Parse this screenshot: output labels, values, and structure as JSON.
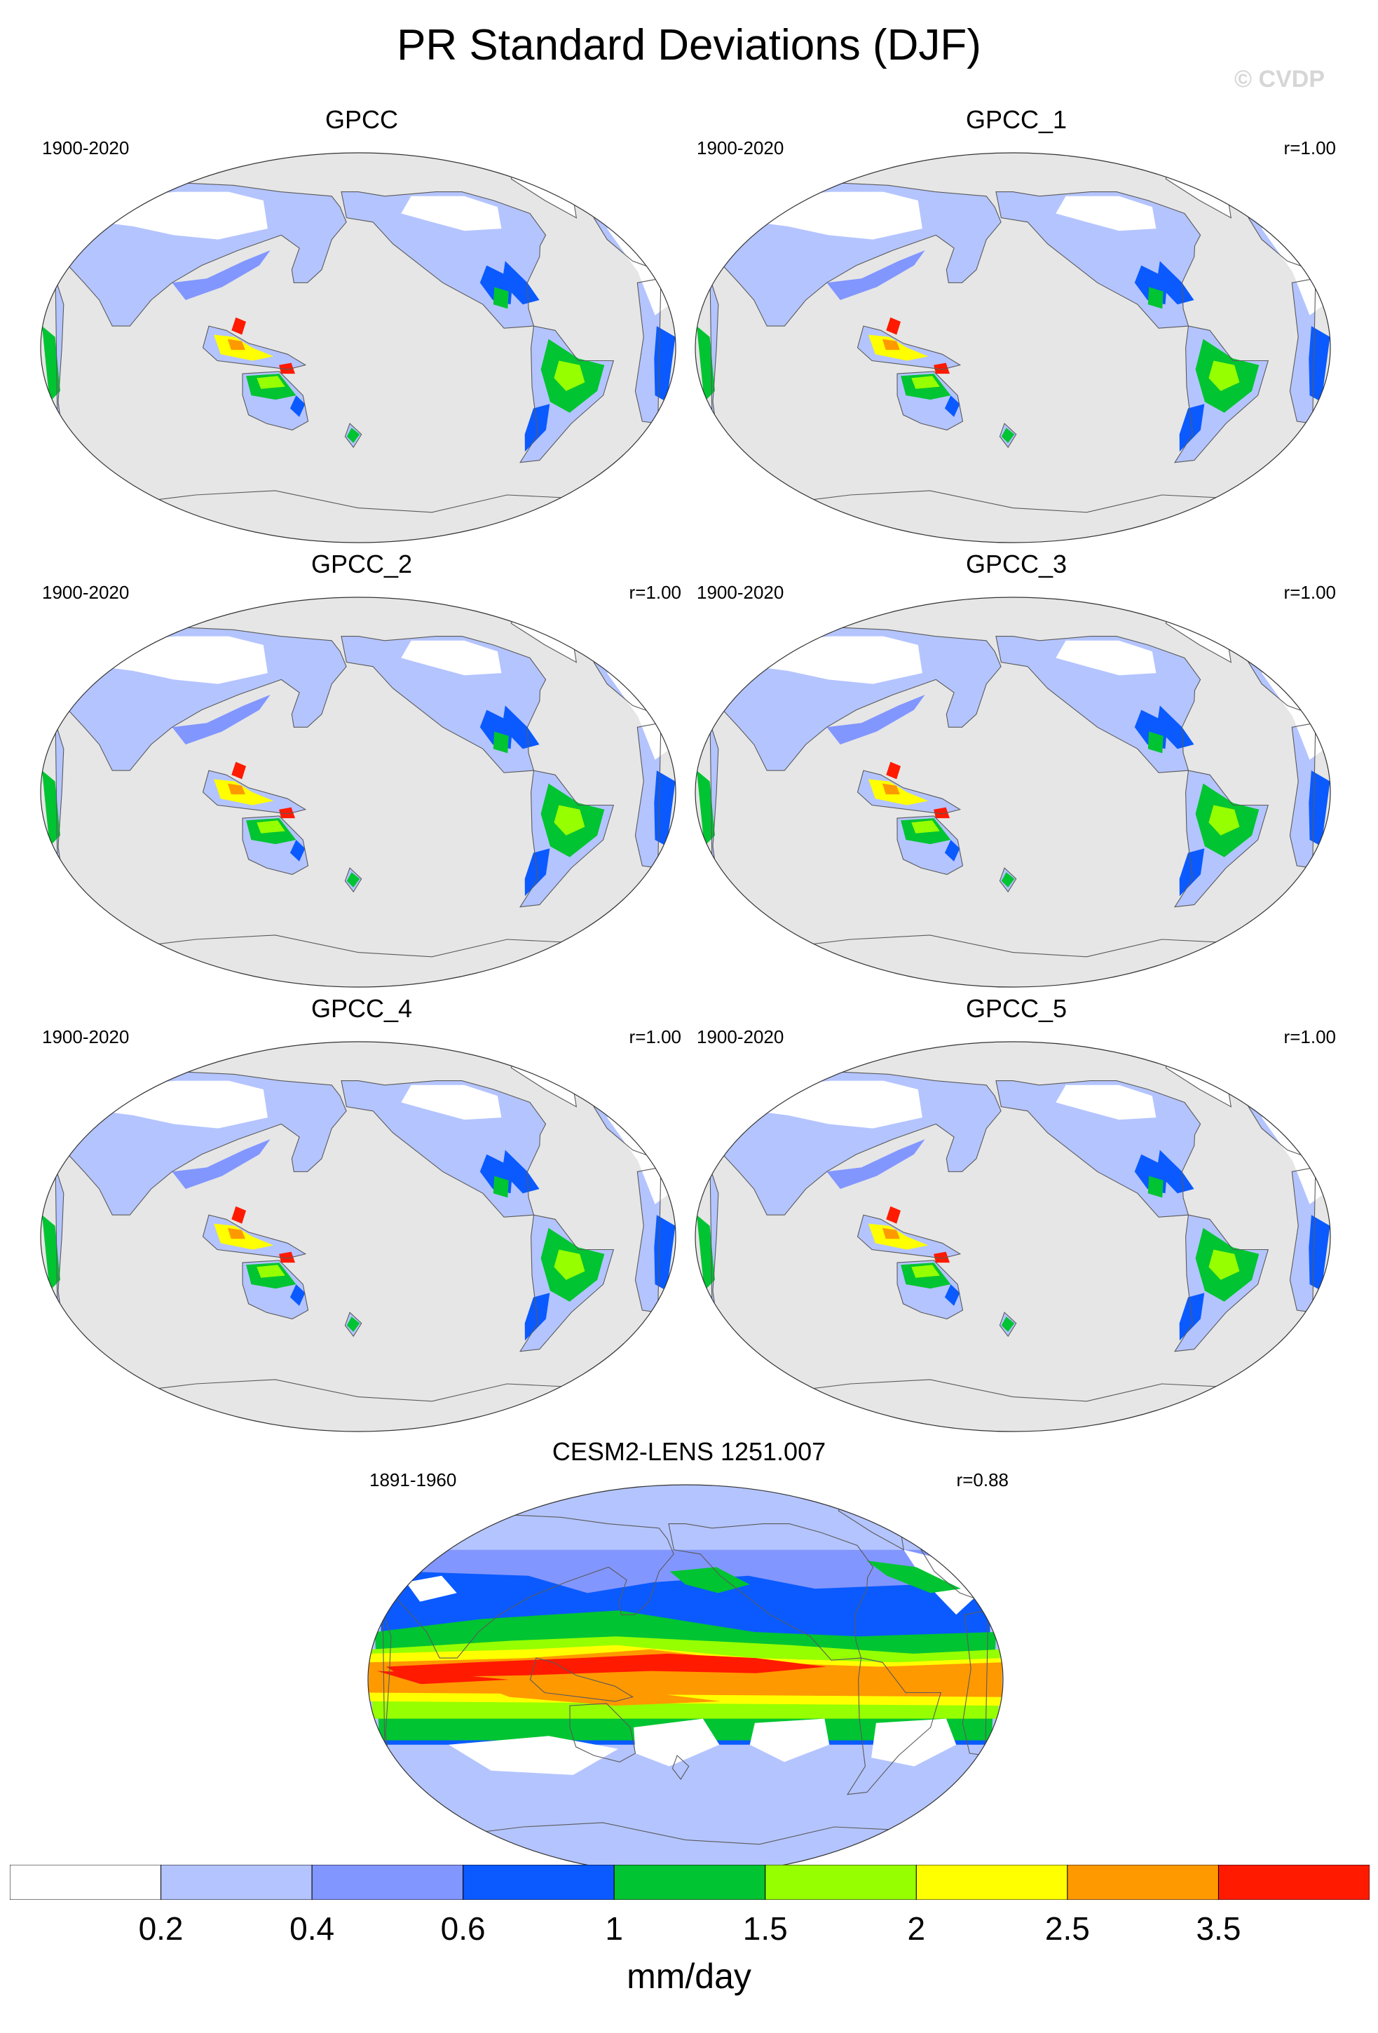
{
  "figure": {
    "title": "PR Standard Deviations (DJF)",
    "watermark": "© CVDP"
  },
  "colors": {
    "ocean_missing": "#e6e6e6",
    "coast": "#5a5a5a",
    "levels": [
      "#ffffff",
      "#b4c4ff",
      "#8296ff",
      "#0a5aff",
      "#00c431",
      "#96ff00",
      "#ffff00",
      "#ff9900",
      "#ff1a00"
    ]
  },
  "chart_data": {
    "type": "heatmap",
    "projection": "Robinson, Pacific-centered",
    "variable": "PR standard deviation",
    "season": "DJF",
    "colorbar": {
      "units": "mm/day",
      "boundaries": [
        0.2,
        0.4,
        0.6,
        1,
        1.5,
        2,
        2.5,
        3.5
      ],
      "tick_labels": [
        "0.2",
        "0.4",
        "0.6",
        "1",
        "1.5",
        "2",
        "2.5",
        "3.5"
      ]
    },
    "panels": [
      {
        "name": "GPCC",
        "years": "1900-2020",
        "corr": ""
      },
      {
        "name": "GPCC_1",
        "years": "1900-2020",
        "corr": "r=1.00"
      },
      {
        "name": "GPCC_2",
        "years": "1900-2020",
        "corr": "r=1.00"
      },
      {
        "name": "GPCC_3",
        "years": "1900-2020",
        "corr": "r=1.00"
      },
      {
        "name": "GPCC_4",
        "years": "1900-2020",
        "corr": "r=1.00"
      },
      {
        "name": "GPCC_5",
        "years": "1900-2020",
        "corr": "r=1.00"
      },
      {
        "name": "CESM2-LENS 1251.007",
        "years": "1891-1960",
        "corr": "r=0.88"
      }
    ]
  }
}
